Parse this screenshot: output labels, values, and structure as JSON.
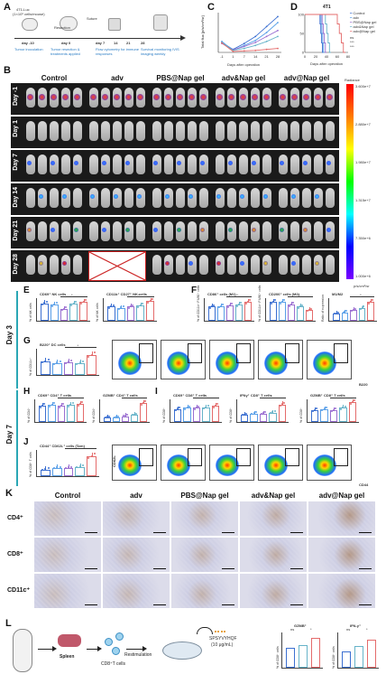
{
  "panels": {
    "A": "A",
    "B": "B",
    "C": "C",
    "D": "D",
    "E": "E",
    "F": "F",
    "G": "G",
    "H": "H",
    "I": "I",
    "J": "J",
    "K": "K",
    "L": "L"
  },
  "panel_a": {
    "cell_label": "4T1-Luc",
    "cell_sub": "(1×10⁶ cells/mouse)",
    "steps": [
      "Resection",
      "Suture"
    ],
    "days": [
      "day -10",
      "day 0",
      "day 7",
      "14",
      "21",
      "28"
    ],
    "captions": [
      "Tumor inoculation",
      "Tumor resection & treatments applied",
      "Flow cytometry for immune responses",
      "Survival monitoring IVIS imaging weekly"
    ]
  },
  "panel_c": {
    "ylabel": "Total flux [p/s/cm²/sr]",
    "xlabel": "Days after operation",
    "chart_data": {
      "type": "line",
      "x": [
        -1,
        1,
        7,
        14,
        21,
        28
      ],
      "series": [
        {
          "name": "Control",
          "color": "#3b6fd1",
          "values": [
            1.0,
            0.3,
            0.9,
            1.6,
            2.6,
            3.6
          ]
        },
        {
          "name": "adv",
          "color": "#5aa0e8",
          "values": [
            1.1,
            0.2,
            0.7,
            1.2,
            2.0,
            3.0
          ]
        },
        {
          "name": "PBS@Nap gel",
          "color": "#9b6fd1",
          "values": [
            0.9,
            0.25,
            0.6,
            1.0,
            1.6,
            2.2
          ]
        },
        {
          "name": "adv&Nap gel",
          "color": "#66b3c9",
          "values": [
            1.0,
            0.2,
            0.4,
            0.7,
            1.1,
            1.6
          ]
        },
        {
          "name": "adv@Nap gel",
          "color": "#e46b6b",
          "values": [
            0.95,
            0.1,
            0.15,
            0.2,
            0.3,
            0.4
          ]
        }
      ],
      "xticks": [
        "-1",
        "1",
        "7",
        "14",
        "21",
        "28"
      ]
    }
  },
  "panel_d": {
    "title": "4T1",
    "ylabel": "Survival rate (%)",
    "xlabel": "Days after operation",
    "legend": [
      "Control",
      "adv",
      "PBS@Nap gel",
      "adv&Nap gel",
      "adv@Nap gel"
    ],
    "stats": [
      "ns",
      "***",
      "***"
    ],
    "xticks": [
      "0",
      "20",
      "40",
      "60",
      "80"
    ],
    "yticks": [
      "0",
      "50",
      "100"
    ]
  },
  "panel_b": {
    "columns": [
      "Control",
      "adv",
      "PBS@Nap gel",
      "adv&Nap gel",
      "adv@Nap gel"
    ],
    "rows": [
      "Day -1",
      "Day 1",
      "Day 7",
      "Day 14",
      "Day 21",
      "Day 28"
    ],
    "colorbar_title": "Radiance",
    "colorbar_ticks": [
      "3.600e+7",
      "2.880e+7",
      "1.980e+7",
      "1.315e+7",
      "7.350e+6",
      "1.000e+6"
    ],
    "colorbar_unit": "p/s/cm²/sr"
  },
  "day3_label": "Day 3",
  "day7_label": "Day 7",
  "panel_e": {
    "titles": [
      "CD69⁺ NK cells",
      "CD11b⁺ CD27⁺ NK cells"
    ],
    "ylabels": [
      "% of NK cells",
      "% of NK cells"
    ]
  },
  "panel_f": {
    "titles": [
      "CD86⁺ cells (M1)",
      "CD206⁺ cells (M2)",
      "M1/M2"
    ],
    "ylabels": [
      "% of CD11b⁺ F4/80⁺ cells",
      "% of CD11b⁺ F4/80⁺ cells",
      "Ratio of expression"
    ]
  },
  "panel_g": {
    "title": "B220⁺ DC cells",
    "ylabel": "% of CD11c⁺",
    "flow_axis": "B220"
  },
  "panel_h": {
    "titles": [
      "CD69⁺ CD4⁺ T cells",
      "GZMB⁺ CD4⁺ T cells"
    ],
    "ylabels": [
      "% of CD4⁺",
      "% of CD4⁺"
    ]
  },
  "panel_i": {
    "titles": [
      "CD69⁺ CD8⁺ T cells",
      "IFNγ⁺ CD8⁺ T cells",
      "GZMB⁺ CD8⁺ T cells"
    ],
    "ylabels": [
      "% of CD8⁺",
      "% of CD8⁺",
      "% of CD8⁺"
    ]
  },
  "panel_j": {
    "title": "CD44⁺ CD62L⁺ cells (Tcm)",
    "ylabel": "% of CD8⁺ T cells",
    "flow_x": "CD44",
    "flow_y": "CD62L"
  },
  "panel_k": {
    "columns": [
      "Control",
      "adv",
      "PBS@Nap gel",
      "adv&Nap gel",
      "adv@Nap gel"
    ],
    "rows": [
      "CD4⁺",
      "CD8⁺",
      "CD11c⁺"
    ]
  },
  "panel_l": {
    "steps": [
      "Spleen",
      "CD8⁺T cells",
      "Restimulation"
    ],
    "peptide": "SPSYVYHQF",
    "peptide_conc": "(10 μg/mL)",
    "charts": [
      {
        "title": "GZMB⁺",
        "ylabel": "% of CD8⁺ cells",
        "stats": [
          "ns",
          "*"
        ]
      },
      {
        "title": "IFN-γ⁺",
        "ylabel": "% of CD8⁺ cells",
        "stats": [
          "ns",
          "*"
        ]
      }
    ]
  },
  "colors": {
    "control": "#3b6fd1",
    "adv": "#5aa0e8",
    "pbs": "#9b6fd1",
    "adv_and": "#66b3c9",
    "adv_at": "#e46b6b",
    "teal": "#2aa7b5"
  }
}
